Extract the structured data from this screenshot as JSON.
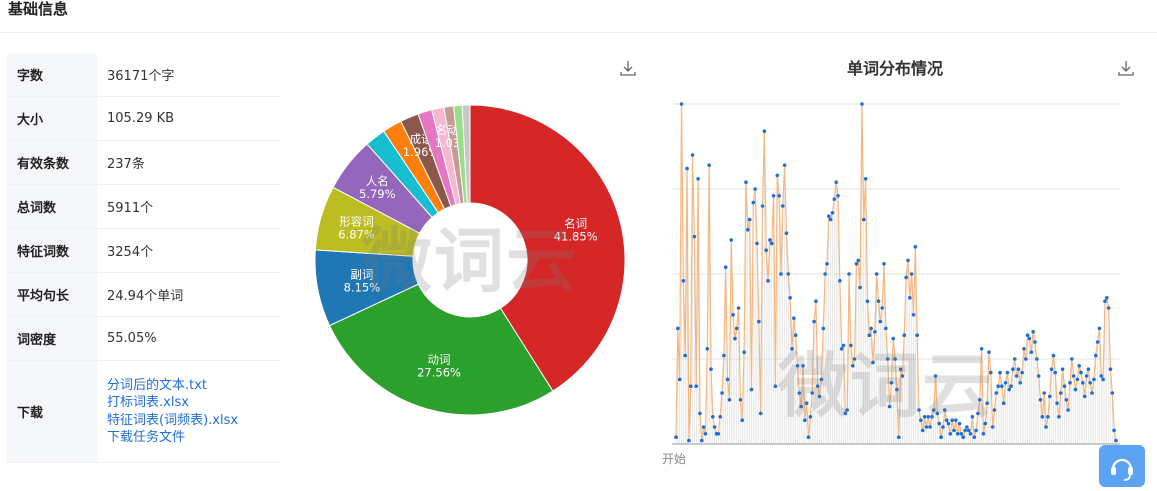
{
  "section": {
    "title": "基础信息"
  },
  "info_rows": [
    {
      "label": "字数",
      "value": "36171个字"
    },
    {
      "label": "大小",
      "value": "105.29 KB"
    },
    {
      "label": "有效条数",
      "value": "237条"
    },
    {
      "label": "总词数",
      "value": "5911个"
    },
    {
      "label": "特征词数",
      "value": "3254个"
    },
    {
      "label": "平均句长",
      "value": "24.94个单词"
    },
    {
      "label": "词密度",
      "value": "55.05%"
    }
  ],
  "download": {
    "label": "下载",
    "links": [
      "分词后的文本.txt",
      "打标词表.xlsx",
      "特征词表(词频表).xlsx",
      "下载任务文件"
    ]
  },
  "watermark": "微词云",
  "line_chart": {
    "title": "单词分布情况",
    "start_label": "开始"
  },
  "icons": {
    "download": "download-icon",
    "service": "customer-service-icon"
  },
  "chart_data": [
    {
      "type": "pie",
      "donut": true,
      "categories": [
        "名词",
        "动词",
        "副词",
        "形容词",
        "人名",
        "",
        "",
        "成语",
        "",
        "",
        "名动词",
        "",
        ""
      ],
      "values": [
        41.85,
        27.56,
        8.15,
        6.87,
        5.79,
        2.2,
        2.07,
        1.96,
        1.5,
        1.3,
        1.03,
        0.9,
        0.82
      ],
      "labels": [
        "41.85%",
        "27.56%",
        "8.15%",
        "6.87%",
        "5.79%",
        "",
        "",
        "1.96%",
        "",
        "",
        "1.03%",
        "",
        ""
      ],
      "colors": [
        "#d62728",
        "#2ca02c",
        "#1f77b4",
        "#bcbd22",
        "#9467bd",
        "#17becf",
        "#ff7f0e",
        "#8c564b",
        "#e377c2",
        "#f7b6d2",
        "#c49c94",
        "#98df8a",
        "#c7c7c7"
      ]
    },
    {
      "type": "line",
      "title": "单词分布情况",
      "xlabel": "开始",
      "grid": true,
      "line_color": "#f5b780",
      "point_color": "#1f6fd6",
      "ylim": [
        0,
        1
      ],
      "values": [
        0.02,
        0.34,
        0.19,
        1.0,
        0.48,
        0.26,
        0.81,
        0.01,
        0.17,
        0.85,
        0.61,
        0.17,
        0.78,
        0.09,
        0.01,
        0.05,
        0.03,
        0.28,
        0.82,
        0.22,
        0.08,
        0.05,
        0.03,
        0.03,
        0.08,
        0.15,
        0.26,
        0.52,
        0.19,
        0.13,
        0.6,
        0.38,
        0.31,
        0.34,
        0.4,
        0.13,
        0.07,
        0.27,
        0.77,
        0.63,
        0.66,
        0.16,
        0.71,
        0.75,
        0.59,
        0.36,
        0.09,
        0.7,
        0.92,
        0.57,
        0.48,
        0.6,
        0.59,
        0.73,
        0.17,
        0.79,
        0.73,
        0.5,
        0.7,
        0.82,
        0.62,
        0.5,
        0.43,
        0.28,
        0.37,
        0.32,
        0.23,
        0.15,
        0.11,
        0.23,
        0.07,
        0.12,
        0.02,
        0.08,
        0.15,
        0.36,
        0.42,
        0.17,
        0.14,
        0.19,
        0.34,
        0.5,
        0.53,
        0.67,
        0.66,
        0.68,
        0.72,
        0.77,
        0.73,
        0.48,
        0.28,
        0.29,
        0.09,
        0.1,
        0.5,
        0.29,
        0.23,
        0.25,
        0.53,
        0.54,
        0.46,
        1.0,
        0.66,
        0.78,
        0.42,
        0.32,
        0.34,
        0.24,
        0.33,
        0.5,
        0.42,
        0.36,
        0.4,
        0.53,
        0.34,
        0.25,
        0.11,
        0.18,
        0.31,
        0.25,
        0.16,
        0.02,
        0.22,
        0.2,
        0.32,
        0.49,
        0.54,
        0.43,
        0.5,
        0.38,
        0.58,
        0.32,
        0.1,
        0.07,
        0.04,
        0.08,
        0.05,
        0.08,
        0.05,
        0.08,
        0.1,
        0.2,
        0.09,
        0.06,
        0.02,
        0.05,
        0.1,
        0.07,
        0.06,
        0.03,
        0.07,
        0.04,
        0.07,
        0.03,
        0.06,
        0.03,
        0.02,
        0.04,
        0.05,
        0.04,
        0.03,
        0.08,
        0.02,
        0.04,
        0.09,
        0.13,
        0.28,
        0.03,
        0.06,
        0.12,
        0.27,
        0.21,
        0.05,
        0.1,
        0.15,
        0.17,
        0.21,
        0.17,
        0.12,
        0.18,
        0.21,
        0.16,
        0.17,
        0.22,
        0.25,
        0.2,
        0.22,
        0.18,
        0.21,
        0.28,
        0.25,
        0.32,
        0.31,
        0.27,
        0.33,
        0.3,
        0.25,
        0.2,
        0.13,
        0.08,
        0.15,
        0.05,
        0.08,
        0.14,
        0.22,
        0.26,
        0.21,
        0.12,
        0.08,
        0.15,
        0.22,
        0.17,
        0.13,
        0.1,
        0.18,
        0.25,
        0.2,
        0.16,
        0.19,
        0.23,
        0.21,
        0.18,
        0.14,
        0.2,
        0.22,
        0.18,
        0.15,
        0.19,
        0.26,
        0.3,
        0.34,
        0.2,
        0.19,
        0.42,
        0.43,
        0.4,
        0.22,
        0.15,
        0.04,
        0.01
      ]
    }
  ]
}
